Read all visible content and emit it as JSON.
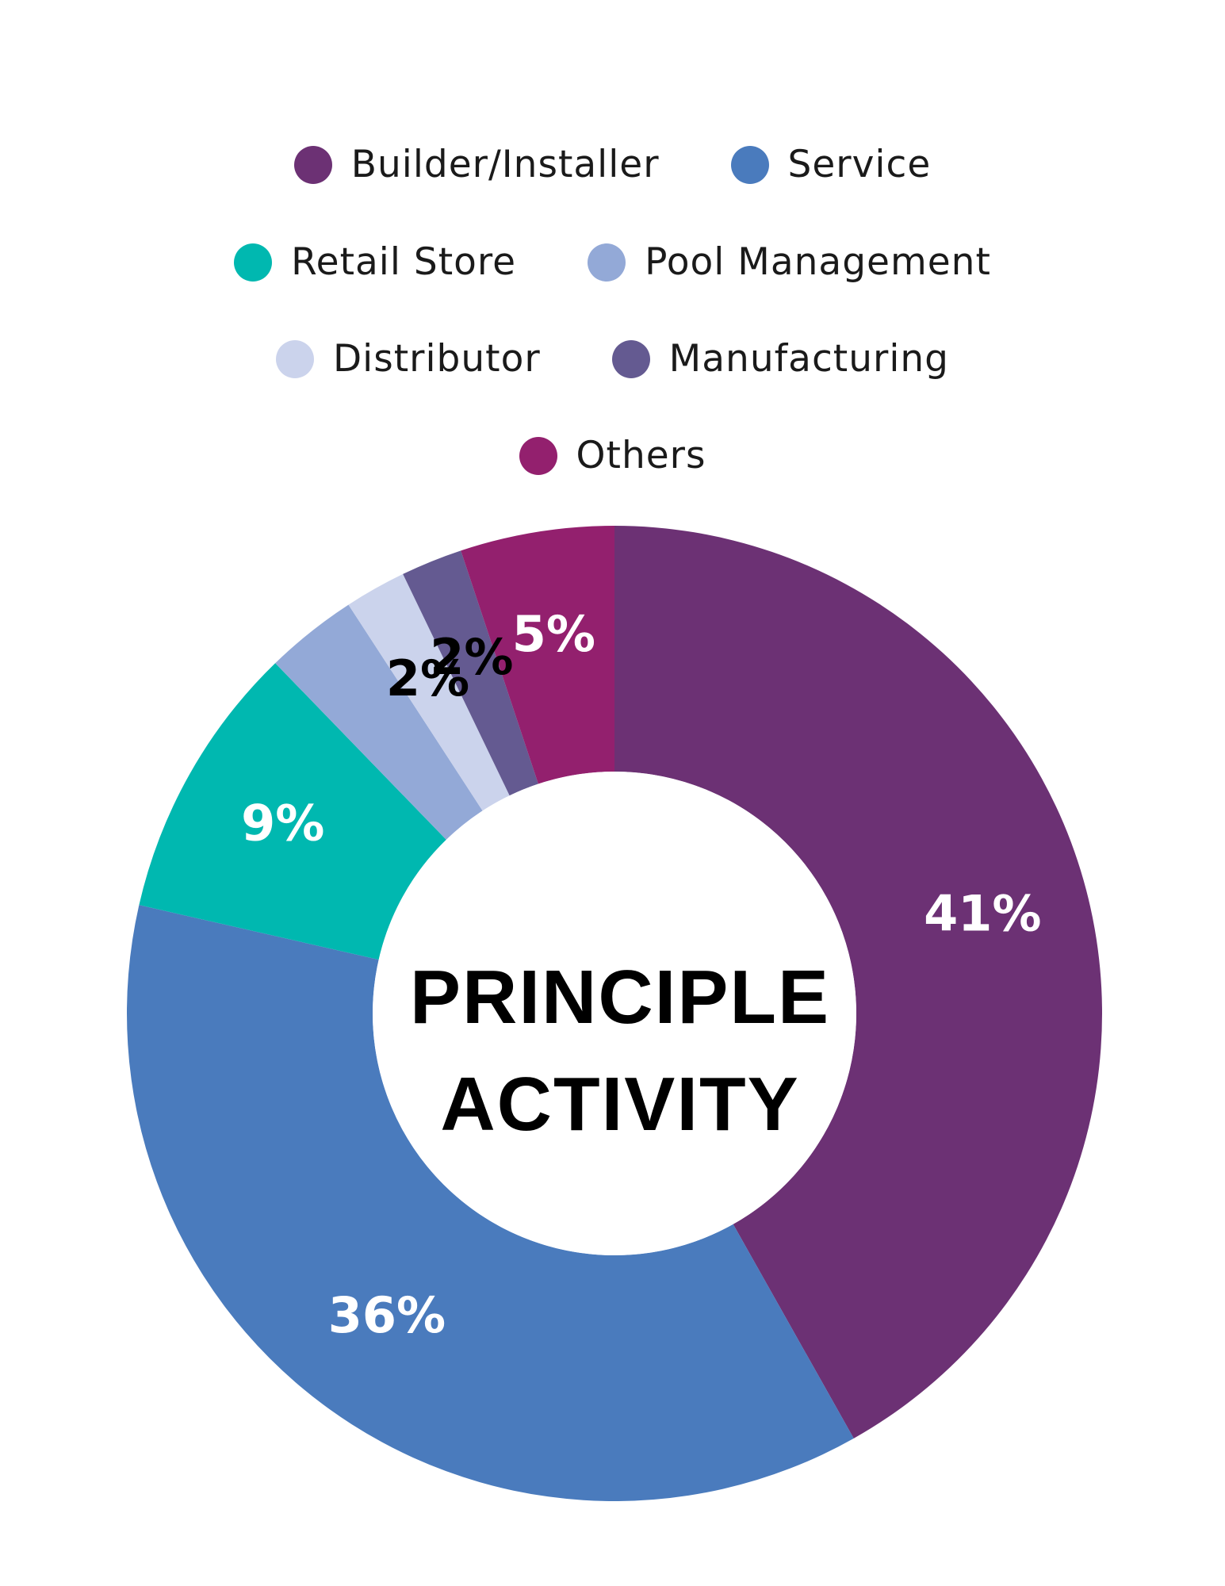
{
  "chart_data": {
    "type": "pie",
    "center_title": [
      "PRINCIPLE",
      "ACTIVITY"
    ],
    "legend_placement": "top",
    "slices": [
      {
        "name": "Builder/Installer",
        "value": 41,
        "label": "41%",
        "color": "#6c3174",
        "label_color": "#ffffff"
      },
      {
        "name": "Service",
        "value": 36,
        "label": "36%",
        "color": "#4a7bbd",
        "label_color": "#ffffff"
      },
      {
        "name": "Retail Store",
        "value": 9,
        "label": "9%",
        "color": "#00b8b0",
        "label_color": "#ffffff"
      },
      {
        "name": "Pool Management",
        "value": 3,
        "label": "",
        "color": "#93a9d7",
        "label_color": "#000000"
      },
      {
        "name": "Distributor",
        "value": 2,
        "label": "2%",
        "color": "#cbd3ec",
        "label_color": "#000000"
      },
      {
        "name": "Manufacturing",
        "value": 2,
        "label": "2%",
        "color": "#645a91",
        "label_color": "#000000"
      },
      {
        "name": "Others",
        "value": 5,
        "label": "5%",
        "color": "#93206e",
        "label_color": "#ffffff"
      }
    ]
  },
  "legend": {
    "rows": [
      [
        {
          "name": "Builder/Installer",
          "color": "#6c3174"
        },
        {
          "name": "Service",
          "color": "#4a7bbd"
        }
      ],
      [
        {
          "name": "Retail Store",
          "color": "#00b8b0"
        },
        {
          "name": "Pool Management",
          "color": "#93a9d7"
        }
      ],
      [
        {
          "name": "Distributor",
          "color": "#cbd3ec"
        },
        {
          "name": "Manufacturing",
          "color": "#645a91"
        }
      ],
      [
        {
          "name": "Others",
          "color": "#93206e"
        }
      ]
    ]
  }
}
